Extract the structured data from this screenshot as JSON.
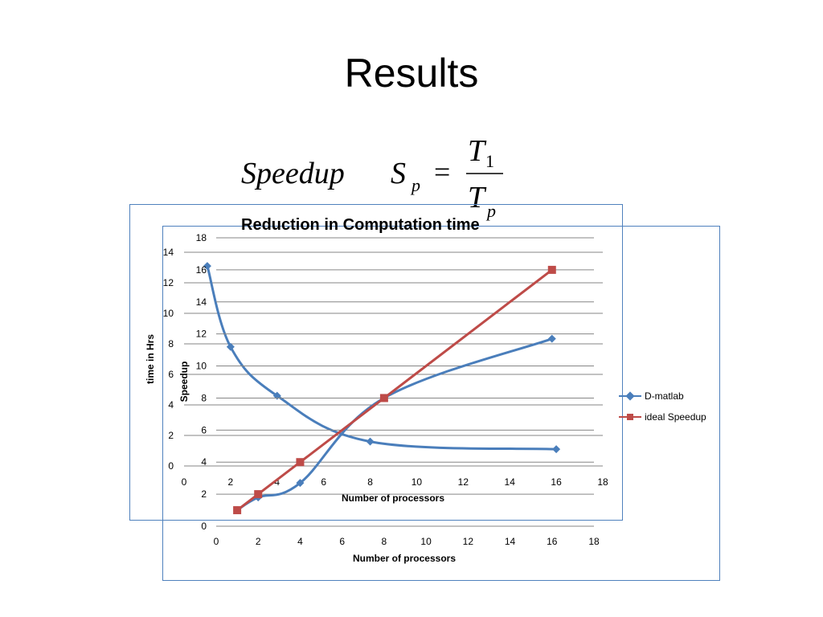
{
  "slide": {
    "title": "Results",
    "formula": {
      "label": "Speedup",
      "lhs": "S",
      "lhs_sub": "p",
      "equals": "=",
      "numerator": "T",
      "numerator_sub": "1",
      "denominator": "T",
      "denominator_sub": "p"
    }
  },
  "colors": {
    "d_matlab": "#4a7ebb",
    "ideal": "#be4b48",
    "grid": "#868686",
    "frame": "#4f81bd"
  },
  "chart_data": [
    {
      "type": "line",
      "title": "",
      "xlabel": "Number of processors",
      "ylabel": "time in Hrs",
      "xlim": [
        0,
        18
      ],
      "ylim": [
        0,
        14
      ],
      "xticks": [
        "0",
        "2",
        "4",
        "6",
        "8",
        "10",
        "12",
        "14",
        "16",
        "18"
      ],
      "yticks": [
        "0",
        "2",
        "4",
        "6",
        "8",
        "10",
        "12",
        "14"
      ],
      "grid": true,
      "series": [
        {
          "name": "",
          "x": [
            1,
            2,
            4,
            8,
            16
          ],
          "y": [
            13.1,
            7.8,
            4.6,
            1.6,
            1.1
          ]
        }
      ]
    },
    {
      "type": "line",
      "title": "Reduction in Computation time",
      "xlabel": "Number of processors",
      "ylabel": "Speedup",
      "xlim": [
        0,
        18
      ],
      "ylim": [
        0,
        18
      ],
      "xticks": [
        "0",
        "2",
        "4",
        "6",
        "8",
        "10",
        "12",
        "14",
        "16",
        "18"
      ],
      "yticks": [
        "0",
        "2",
        "4",
        "6",
        "8",
        "10",
        "12",
        "14",
        "16",
        "18"
      ],
      "grid": true,
      "legend": "right",
      "series": [
        {
          "name": "D-matlab",
          "x": [
            1,
            2,
            4,
            8,
            16
          ],
          "y": [
            1,
            1.8,
            2.7,
            8,
            11.7
          ]
        },
        {
          "name": "ideal Speedup",
          "x": [
            1,
            2,
            4,
            8,
            16
          ],
          "y": [
            1,
            2,
            4,
            8,
            16
          ]
        }
      ]
    }
  ]
}
